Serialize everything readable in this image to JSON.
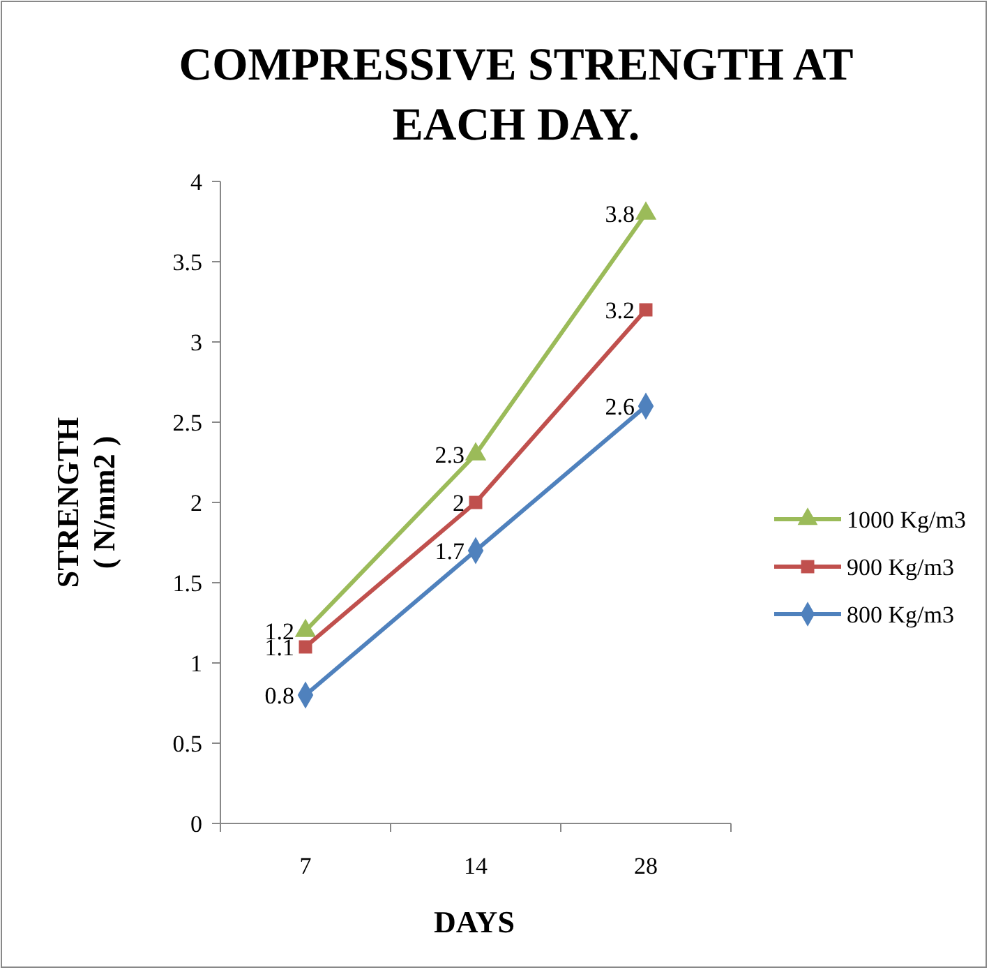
{
  "chart_data": {
    "type": "line",
    "title": "COMPRESSIVE STRENGTH AT\nEACH DAY.",
    "xlabel": "DAYS",
    "ylabel": "STRENGTH\n( N/mm2 )",
    "categories": [
      "7",
      "14",
      "28"
    ],
    "series": [
      {
        "name": "1000 Kg/m3",
        "color": "#9bbb59",
        "marker": "triangle",
        "values": [
          1.2,
          2.3,
          3.8
        ]
      },
      {
        "name": "900 Kg/m3",
        "color": "#c0504d",
        "marker": "square",
        "values": [
          1.1,
          2,
          3.2
        ]
      },
      {
        "name": "800 Kg/m3",
        "color": "#4f81bd",
        "marker": "diamond",
        "values": [
          0.8,
          1.7,
          2.6
        ]
      }
    ],
    "ylim": [
      0,
      4
    ],
    "yticks": [
      0,
      0.5,
      1,
      1.5,
      2,
      2.5,
      3,
      3.5,
      4
    ],
    "grid": false,
    "legend": "right",
    "data_labels": true,
    "line_style": "solid"
  }
}
